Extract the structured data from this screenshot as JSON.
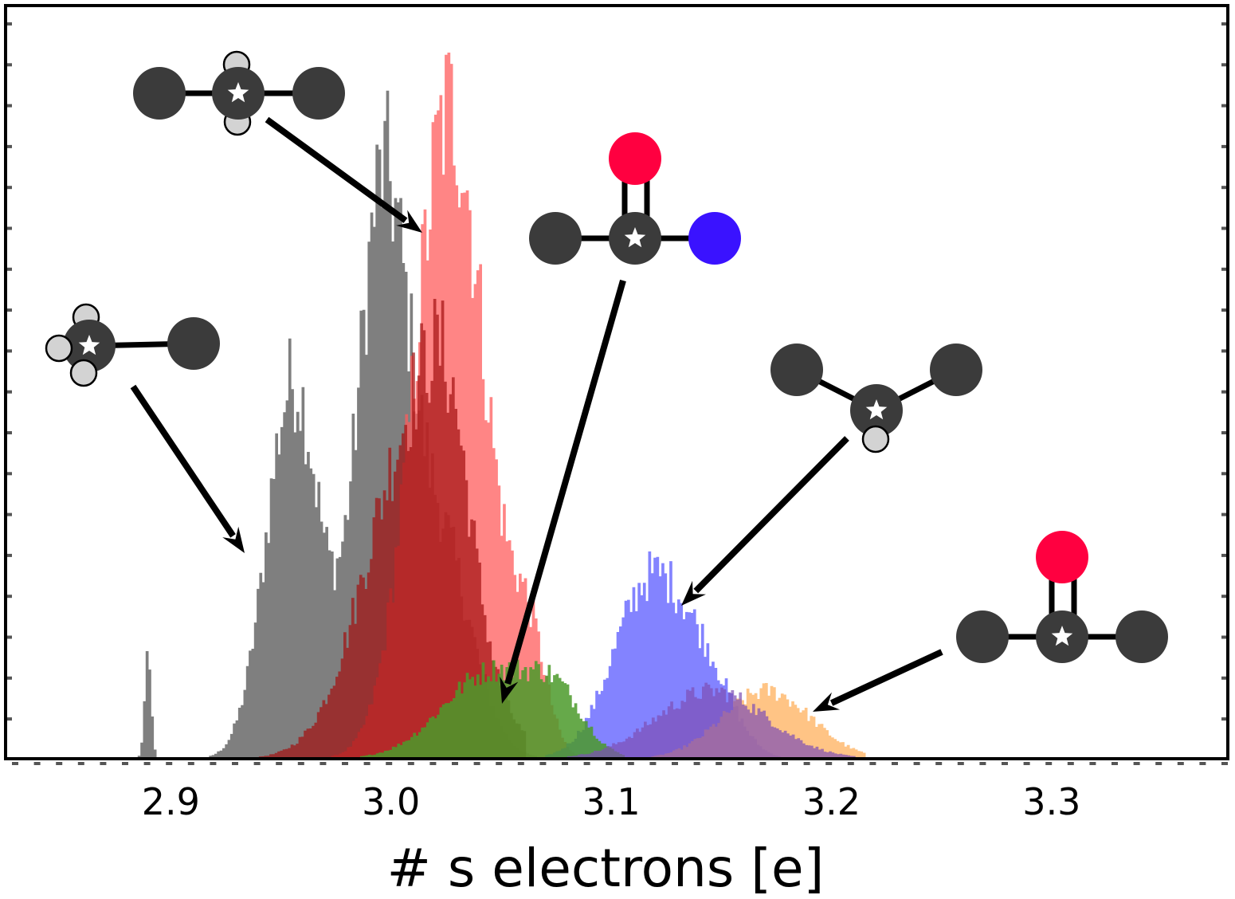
{
  "chart_data": {
    "type": "histogram",
    "title": "",
    "xlabel": "# s electrons [e]",
    "ylabel": "",
    "xlim": [
      2.825,
      3.38
    ],
    "ylim": [
      0,
      1.0
    ],
    "x_ticks": [
      "2.9",
      "3.0",
      "3.1",
      "3.2",
      "3.3"
    ],
    "x_tick_values": [
      2.9,
      3.0,
      3.1,
      3.2,
      3.3
    ],
    "grid": false,
    "legend": "none",
    "series": [
      {
        "color": "#7f7f7f",
        "opacity": 1.0,
        "range": [
          2.885,
          3.09
        ],
        "peaks": [
          {
            "mu": 2.889,
            "sigma": 0.0015,
            "amp": 0.13
          },
          {
            "mu": 2.955,
            "sigma": 0.012,
            "amp": 0.5
          },
          {
            "mu": 2.995,
            "sigma": 0.011,
            "amp": 0.7
          },
          {
            "mu": 3.02,
            "sigma": 0.015,
            "amp": 0.3
          }
        ]
      },
      {
        "color": "#ff5c5c",
        "opacity": 0.75,
        "range": [
          2.92,
          3.09
        ],
        "peaks": [
          {
            "mu": 3.026,
            "sigma": 0.016,
            "amp": 0.86
          },
          {
            "mu": 3.062,
            "sigma": 0.008,
            "amp": 0.14
          }
        ]
      },
      {
        "color": "#a30f0f",
        "opacity": 0.7,
        "range": [
          2.91,
          3.06
        ],
        "peaks": [
          {
            "mu": 3.01,
            "sigma": 0.022,
            "amp": 0.43
          },
          {
            "mu": 3.025,
            "sigma": 0.01,
            "amp": 0.18
          }
        ]
      },
      {
        "color": "#5a5aff",
        "opacity": 0.75,
        "range": [
          3.07,
          3.2
        ],
        "peaks": [
          {
            "mu": 3.118,
            "sigma": 0.017,
            "amp": 0.24
          },
          {
            "mu": 3.145,
            "sigma": 0.012,
            "amp": 0.07
          }
        ]
      },
      {
        "color": "#ffb566",
        "opacity": 0.8,
        "range": [
          3.075,
          3.215
        ],
        "peaks": [
          {
            "mu": 3.17,
            "sigma": 0.02,
            "amp": 0.09
          }
        ]
      },
      {
        "color": "#4b9a2a",
        "opacity": 0.85,
        "range": [
          2.95,
          3.105
        ],
        "peaks": [
          {
            "mu": 3.045,
            "sigma": 0.022,
            "amp": 0.115
          },
          {
            "mu": 3.075,
            "sigma": 0.012,
            "amp": 0.06
          }
        ]
      },
      {
        "color": "#7d4fb5",
        "opacity": 0.7,
        "range": [
          3.08,
          3.21
        ],
        "peaks": [
          {
            "mu": 3.145,
            "sigma": 0.025,
            "amp": 0.09
          }
        ]
      }
    ],
    "annotations": [
      {
        "name": "ethane-like",
        "atoms": [
          "dark",
          "dark-star",
          "dark",
          "h",
          "h"
        ],
        "arrow_to_x": 3.015
      },
      {
        "name": "amide-like",
        "atoms": [
          "dark",
          "dark-star",
          "blue",
          "red"
        ],
        "arrow_to_x": 3.045
      },
      {
        "name": "methyl-like",
        "atoms": [
          "dark-star",
          "dark",
          "h",
          "h",
          "h"
        ],
        "arrow_to_x": 2.935
      },
      {
        "name": "isopropyl-like",
        "atoms": [
          "dark",
          "dark-star",
          "dark",
          "h"
        ],
        "arrow_to_x": 3.125
      },
      {
        "name": "ketone-like",
        "atoms": [
          "dark",
          "dark-star",
          "dark",
          "red"
        ],
        "arrow_to_x": 3.19
      }
    ]
  },
  "colors": {
    "dark_atom": "#3b3b3b",
    "hydrogen": "#d3d3d3",
    "oxygen": "#ff0040",
    "nitrogen": "#3a12ff"
  }
}
